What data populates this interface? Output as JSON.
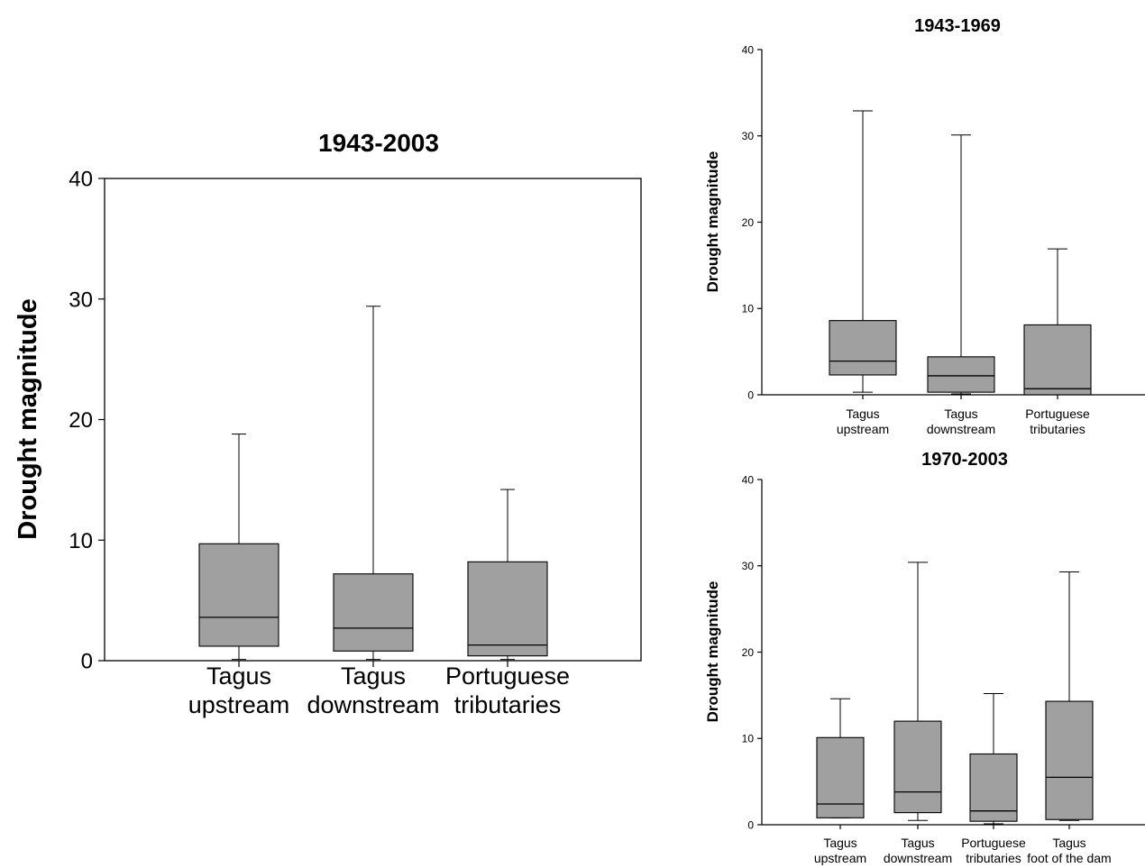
{
  "chart_data": [
    {
      "type": "boxplot",
      "title": "1943-2003",
      "xlabel": "",
      "ylabel": "Drought magnitude",
      "ylim": [
        0,
        40
      ],
      "yticks": [
        0,
        10,
        20,
        30,
        40
      ],
      "categories": [
        [
          "Tagus",
          "upstream"
        ],
        [
          "Tagus",
          "downstream"
        ],
        [
          "Portuguese",
          "tributaries"
        ]
      ],
      "boxes": [
        {
          "min": 0.1,
          "q1": 1.2,
          "median": 3.6,
          "q3": 9.7,
          "max": 18.8
        },
        {
          "min": 0.1,
          "q1": 0.8,
          "median": 2.7,
          "q3": 7.2,
          "max": 29.4
        },
        {
          "min": 0.1,
          "q1": 0.4,
          "median": 1.3,
          "q3": 8.2,
          "max": 14.2
        }
      ],
      "box_color": "#a0a0a0"
    },
    {
      "type": "boxplot",
      "title": "1943-1969",
      "xlabel": "",
      "ylabel": "Drought magnitude",
      "ylim": [
        0,
        40
      ],
      "yticks": [
        0,
        10,
        20,
        30,
        40
      ],
      "categories": [
        [
          "Tagus",
          "upstream"
        ],
        [
          "Tagus",
          "downstream"
        ],
        [
          "Portuguese",
          "tributaries"
        ]
      ],
      "boxes": [
        {
          "min": 0.3,
          "q1": 2.3,
          "median": 3.9,
          "q3": 8.6,
          "max": 32.9
        },
        {
          "min": 0.1,
          "q1": 0.3,
          "median": 2.2,
          "q3": 4.4,
          "max": 30.1
        },
        {
          "min": 0.0,
          "q1": 0.0,
          "median": 0.7,
          "q3": 8.1,
          "max": 16.9
        }
      ],
      "box_color": "#a0a0a0"
    },
    {
      "type": "boxplot",
      "title": "1970-2003",
      "xlabel": "",
      "ylabel": "Drought magnitude",
      "ylim": [
        0,
        40
      ],
      "yticks": [
        0,
        10,
        20,
        30,
        40
      ],
      "categories": [
        [
          "Tagus",
          "upstream"
        ],
        [
          "Tagus",
          "downstream"
        ],
        [
          "Portuguese",
          "tributaries"
        ],
        [
          "Tagus",
          "foot of the dam"
        ]
      ],
      "boxes": [
        {
          "min": 0.8,
          "q1": 0.8,
          "median": 2.4,
          "q3": 10.1,
          "max": 14.6
        },
        {
          "min": 0.5,
          "q1": 1.4,
          "median": 3.8,
          "q3": 12.0,
          "max": 30.4
        },
        {
          "min": 0.1,
          "q1": 0.4,
          "median": 1.6,
          "q3": 8.2,
          "max": 15.2
        },
        {
          "min": 0.5,
          "q1": 0.6,
          "median": 5.5,
          "q3": 14.3,
          "max": 29.3
        }
      ],
      "box_color": "#a0a0a0"
    }
  ]
}
